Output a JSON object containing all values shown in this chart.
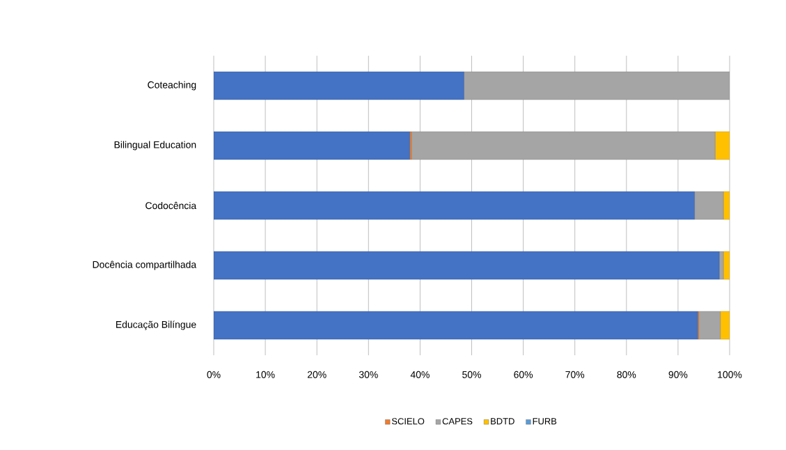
{
  "chart_data": {
    "type": "bar",
    "orientation": "horizontal",
    "stacked": true,
    "categories": [
      "Coteaching",
      "Bilingual Education",
      "Codocência",
      "Docência compartilhada",
      "Educação Bilíngue"
    ],
    "series": [
      {
        "color": "#4472c4",
        "values": [
          48.5,
          38,
          93.2,
          98,
          93.8
        ]
      },
      {
        "name": "SCIELO",
        "color": "#ed7d31",
        "values": [
          0,
          0.3,
          0,
          0,
          0.2
        ]
      },
      {
        "name": "CAPES",
        "color": "#a5a5a5",
        "values": [
          51.5,
          58.9,
          5.6,
          0.8,
          4.2
        ]
      },
      {
        "name": "BDTD",
        "color": "#ffc000",
        "values": [
          0,
          2.8,
          1.2,
          1.2,
          1.8
        ]
      },
      {
        "name": "FURB",
        "color": "#5b9bd5",
        "values": [
          0,
          0,
          0,
          0,
          0
        ]
      }
    ],
    "xlim": [
      0,
      100
    ],
    "xticks": [
      {
        "value": 0,
        "label": "0%"
      },
      {
        "value": 10,
        "label": "10%"
      },
      {
        "value": 20,
        "label": "20%"
      },
      {
        "value": 30,
        "label": "30%"
      },
      {
        "value": 40,
        "label": "40%"
      },
      {
        "value": 50,
        "label": "50%"
      },
      {
        "value": 60,
        "label": "60%"
      },
      {
        "value": 70,
        "label": "70%"
      },
      {
        "value": 80,
        "label": "80%"
      },
      {
        "value": 90,
        "label": "90%"
      },
      {
        "value": 100,
        "label": "100%"
      }
    ],
    "grid": "x",
    "legend": "bottom"
  }
}
